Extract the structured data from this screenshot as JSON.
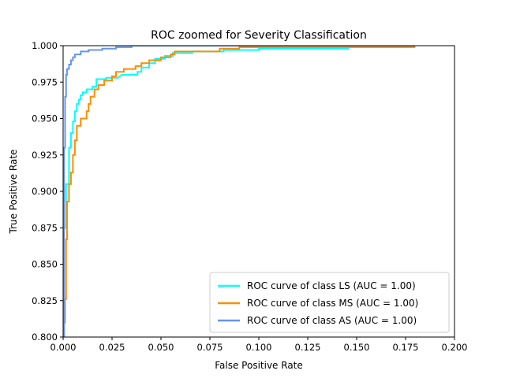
{
  "chart_data": {
    "type": "line",
    "title": "ROC zoomed for Severity Classification",
    "xlabel": "False Positive Rate",
    "ylabel": "True Positive Rate",
    "xlim": [
      0.0,
      0.2
    ],
    "ylim": [
      0.8,
      1.0
    ],
    "xticks": [
      "0.000",
      "0.025",
      "0.050",
      "0.075",
      "0.100",
      "0.125",
      "0.150",
      "0.175",
      "0.200"
    ],
    "yticks": [
      "0.800",
      "0.825",
      "0.850",
      "0.875",
      "0.900",
      "0.925",
      "0.950",
      "0.975",
      "1.000"
    ],
    "grid": false,
    "legend_position": "lower-right",
    "series": [
      {
        "name": "ROC curve of class LS (AUC = 1.00)",
        "color": "#00ffff",
        "points": [
          [
            0.0,
            0.8
          ],
          [
            0.0,
            0.875
          ],
          [
            0.0015,
            0.875
          ],
          [
            0.0015,
            0.905
          ],
          [
            0.003,
            0.905
          ],
          [
            0.003,
            0.93
          ],
          [
            0.004,
            0.93
          ],
          [
            0.004,
            0.94
          ],
          [
            0.005,
            0.94
          ],
          [
            0.005,
            0.948
          ],
          [
            0.006,
            0.948
          ],
          [
            0.006,
            0.955
          ],
          [
            0.007,
            0.955
          ],
          [
            0.007,
            0.96
          ],
          [
            0.008,
            0.96
          ],
          [
            0.008,
            0.963
          ],
          [
            0.009,
            0.963
          ],
          [
            0.009,
            0.966
          ],
          [
            0.01,
            0.966
          ],
          [
            0.01,
            0.968
          ],
          [
            0.012,
            0.968
          ],
          [
            0.012,
            0.97
          ],
          [
            0.015,
            0.97
          ],
          [
            0.015,
            0.972
          ],
          [
            0.017,
            0.972
          ],
          [
            0.017,
            0.977
          ],
          [
            0.022,
            0.977
          ],
          [
            0.022,
            0.978
          ],
          [
            0.028,
            0.978
          ],
          [
            0.03,
            0.98
          ],
          [
            0.038,
            0.98
          ],
          [
            0.038,
            0.982
          ],
          [
            0.04,
            0.982
          ],
          [
            0.04,
            0.985
          ],
          [
            0.044,
            0.985
          ],
          [
            0.044,
            0.988
          ],
          [
            0.047,
            0.988
          ],
          [
            0.047,
            0.991
          ],
          [
            0.052,
            0.991
          ],
          [
            0.052,
            0.993
          ],
          [
            0.056,
            0.993
          ],
          [
            0.056,
            0.995
          ],
          [
            0.066,
            0.995
          ],
          [
            0.066,
            0.996
          ],
          [
            0.082,
            0.996
          ],
          [
            0.082,
            0.997
          ],
          [
            0.1,
            0.997
          ],
          [
            0.1,
            0.998
          ],
          [
            0.146,
            0.998
          ]
        ]
      },
      {
        "name": "ROC curve of class MS (AUC = 1.00)",
        "color": "#ff8c00",
        "points": [
          [
            0.0,
            0.8
          ],
          [
            0.0005,
            0.8
          ],
          [
            0.0005,
            0.81
          ],
          [
            0.001,
            0.81
          ],
          [
            0.001,
            0.826
          ],
          [
            0.0015,
            0.826
          ],
          [
            0.0015,
            0.867
          ],
          [
            0.002,
            0.867
          ],
          [
            0.002,
            0.893
          ],
          [
            0.003,
            0.893
          ],
          [
            0.003,
            0.905
          ],
          [
            0.004,
            0.905
          ],
          [
            0.004,
            0.913
          ],
          [
            0.005,
            0.913
          ],
          [
            0.005,
            0.925
          ],
          [
            0.006,
            0.925
          ],
          [
            0.006,
            0.935
          ],
          [
            0.007,
            0.935
          ],
          [
            0.007,
            0.945
          ],
          [
            0.009,
            0.945
          ],
          [
            0.009,
            0.95
          ],
          [
            0.012,
            0.95
          ],
          [
            0.012,
            0.955
          ],
          [
            0.013,
            0.955
          ],
          [
            0.013,
            0.96
          ],
          [
            0.014,
            0.96
          ],
          [
            0.014,
            0.965
          ],
          [
            0.016,
            0.965
          ],
          [
            0.016,
            0.97
          ],
          [
            0.018,
            0.97
          ],
          [
            0.018,
            0.973
          ],
          [
            0.021,
            0.973
          ],
          [
            0.021,
            0.976
          ],
          [
            0.025,
            0.976
          ],
          [
            0.025,
            0.979
          ],
          [
            0.027,
            0.979
          ],
          [
            0.027,
            0.982
          ],
          [
            0.031,
            0.982
          ],
          [
            0.031,
            0.984
          ],
          [
            0.037,
            0.984
          ],
          [
            0.037,
            0.986
          ],
          [
            0.04,
            0.986
          ],
          [
            0.04,
            0.988
          ],
          [
            0.044,
            0.988
          ],
          [
            0.044,
            0.99
          ],
          [
            0.05,
            0.99
          ],
          [
            0.05,
            0.992
          ],
          [
            0.055,
            0.992
          ],
          [
            0.055,
            0.994
          ],
          [
            0.057,
            0.994
          ],
          [
            0.057,
            0.996
          ],
          [
            0.08,
            0.996
          ],
          [
            0.08,
            0.998
          ],
          [
            0.09,
            0.998
          ],
          [
            0.09,
            0.999
          ],
          [
            0.18,
            0.999
          ]
        ]
      },
      {
        "name": "ROC curve of class AS (AUC = 1.00)",
        "color": "#6495ed",
        "points": [
          [
            0.0,
            0.8
          ],
          [
            0.0005,
            0.8
          ],
          [
            0.0005,
            0.93
          ],
          [
            0.001,
            0.93
          ],
          [
            0.001,
            0.965
          ],
          [
            0.0015,
            0.965
          ],
          [
            0.0015,
            0.98
          ],
          [
            0.002,
            0.98
          ],
          [
            0.002,
            0.984
          ],
          [
            0.003,
            0.984
          ],
          [
            0.003,
            0.987
          ],
          [
            0.004,
            0.987
          ],
          [
            0.004,
            0.99
          ],
          [
            0.005,
            0.99
          ],
          [
            0.005,
            0.992
          ],
          [
            0.006,
            0.992
          ],
          [
            0.006,
            0.994
          ],
          [
            0.009,
            0.994
          ],
          [
            0.009,
            0.996
          ],
          [
            0.013,
            0.996
          ],
          [
            0.013,
            0.997
          ],
          [
            0.02,
            0.997
          ],
          [
            0.02,
            0.998
          ],
          [
            0.027,
            0.998
          ],
          [
            0.027,
            0.999
          ],
          [
            0.035,
            0.999
          ],
          [
            0.035,
            1.0
          ],
          [
            0.18,
            1.0
          ]
        ]
      }
    ]
  }
}
